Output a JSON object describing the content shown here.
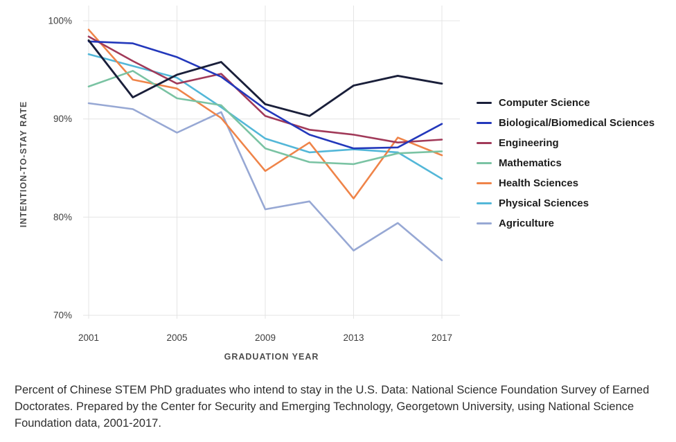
{
  "chart_data": {
    "type": "line",
    "title": "",
    "xlabel": "GRADUATION YEAR",
    "ylabel": "INTENTION-TO-STAY RATE",
    "x": [
      2001,
      2003,
      2005,
      2007,
      2009,
      2011,
      2013,
      2015,
      2017
    ],
    "x_ticks": [
      2001,
      2005,
      2009,
      2013,
      2017
    ],
    "x_tick_labels": [
      "2001",
      "2005",
      "2009",
      "2013",
      "2017"
    ],
    "y_ticks": [
      70,
      80,
      90,
      100
    ],
    "y_tick_labels": [
      "70%",
      "80%",
      "90%",
      "100%"
    ],
    "ylim": [
      68,
      101.5
    ],
    "grid": true,
    "legend_position": "right",
    "gridline_color": "#e4e4e4",
    "series": [
      {
        "name": "Computer Science",
        "color": "#1a1f3a",
        "values": [
          98.0,
          92.2,
          94.5,
          95.8,
          91.5,
          90.3,
          93.4,
          94.4,
          93.6
        ]
      },
      {
        "name": "Biological/Biomedical Sciences",
        "color": "#2338bb",
        "values": [
          97.9,
          97.7,
          96.3,
          94.3,
          91.0,
          88.4,
          87.0,
          87.1,
          89.5
        ]
      },
      {
        "name": "Engineering",
        "color": "#a13a59",
        "values": [
          98.4,
          95.9,
          93.6,
          94.6,
          90.3,
          88.9,
          88.4,
          87.6,
          87.9
        ]
      },
      {
        "name": "Mathematics",
        "color": "#7ac3a3",
        "values": [
          93.3,
          94.9,
          92.1,
          91.4,
          87.0,
          85.6,
          85.4,
          86.5,
          86.7
        ]
      },
      {
        "name": "Health Sciences",
        "color": "#ef8449",
        "values": [
          99.1,
          94.0,
          93.1,
          90.1,
          84.7,
          87.6,
          81.9,
          88.1,
          86.3
        ]
      },
      {
        "name": "Physical Sciences",
        "color": "#53b7d8",
        "values": [
          96.6,
          95.4,
          94.2,
          91.2,
          88.0,
          86.6,
          86.9,
          86.6,
          83.9
        ]
      },
      {
        "name": "Agriculture",
        "color": "#97a8d4",
        "values": [
          91.6,
          91.0,
          88.6,
          90.7,
          80.8,
          81.6,
          76.6,
          79.4,
          75.6
        ]
      }
    ]
  },
  "caption": {
    "text": "Percent of Chinese STEM PhD graduates who intend to stay in the U.S. Data: National Science Foundation Survey of Earned Doctorates. Prepared by the Center for Security and Emerging Technology, Georgetown University, using National Science Foundation data, 2001-2017."
  }
}
